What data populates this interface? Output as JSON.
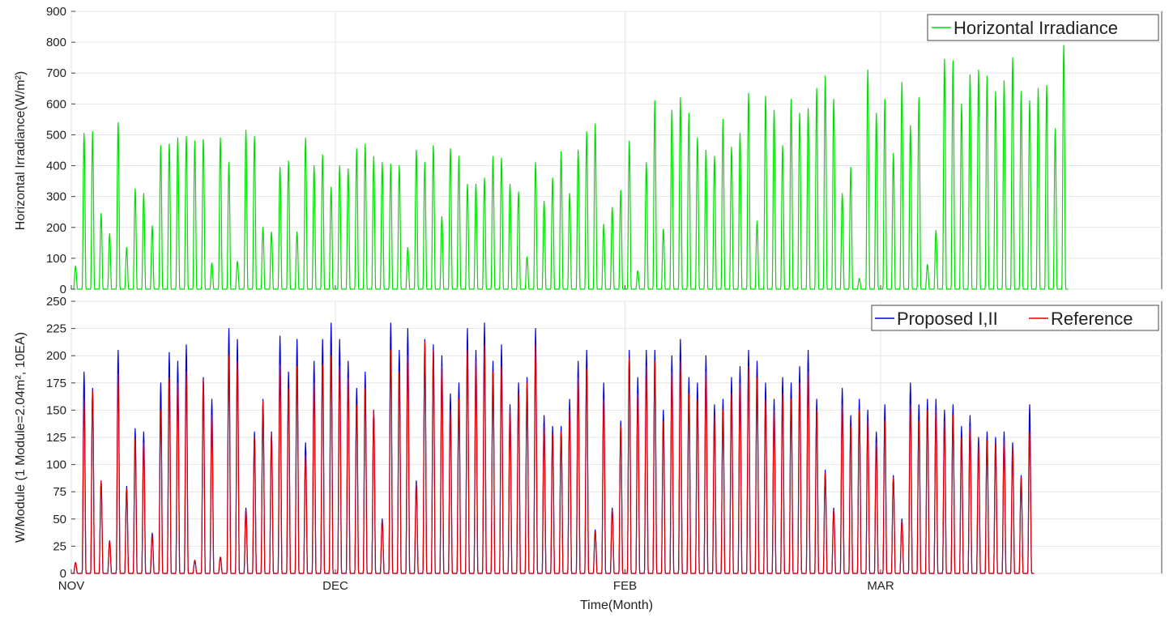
{
  "chart_data": [
    {
      "type": "line",
      "ylabel": "Horizontal Irradiance(W/m²)",
      "ylim": [
        0,
        900
      ],
      "yticks": [
        0,
        100,
        200,
        300,
        400,
        500,
        600,
        700,
        800,
        900
      ],
      "grid": true,
      "legend_position": "top-right",
      "x_unit": "day",
      "xlim": [
        0,
        128
      ],
      "series": [
        {
          "name": "Horizontal Irradiance",
          "color": "#00dd00",
          "daily_peaks": [
            75,
            505,
            510,
            245,
            180,
            540,
            135,
            325,
            310,
            205,
            465,
            470,
            490,
            495,
            480,
            485,
            85,
            490,
            410,
            90,
            515,
            495,
            200,
            185,
            395,
            415,
            185,
            490,
            400,
            435,
            330,
            400,
            390,
            455,
            470,
            430,
            410,
            405,
            400,
            135,
            450,
            410,
            465,
            235,
            455,
            430,
            340,
            340,
            360,
            430,
            425,
            340,
            315,
            105,
            410,
            285,
            360,
            445,
            310,
            450,
            510,
            535,
            210,
            265,
            320,
            480,
            60,
            410,
            610,
            195,
            580,
            620,
            570,
            490,
            450,
            430,
            550,
            460,
            505,
            635,
            220,
            625,
            580,
            465,
            615,
            570,
            585,
            650,
            690,
            615,
            310,
            395,
            35,
            710,
            570,
            615,
            440,
            670,
            530,
            620,
            80,
            190,
            745,
            740,
            600,
            695,
            710,
            690,
            640,
            675,
            750,
            640,
            610,
            650,
            660,
            520,
            790
          ]
        }
      ]
    },
    {
      "type": "line",
      "xlabel": "Time(Month)",
      "ylabel": "W/Module (1 Module=2.04m², 10EA)",
      "ylim": [
        0,
        250
      ],
      "yticks": [
        0,
        25,
        50,
        75,
        100,
        125,
        150,
        175,
        200,
        225,
        250
      ],
      "x_unit": "day",
      "xlim": [
        0,
        128
      ],
      "xticks": [
        {
          "label": "NOV",
          "x": 0
        },
        {
          "label": "DEC",
          "x": 31
        },
        {
          "label": "FEB",
          "x": 65
        },
        {
          "label": "MAR",
          "x": 95
        }
      ],
      "grid": true,
      "legend_position": "top-right",
      "series": [
        {
          "name": "Proposed I,II",
          "color": "#0000dd",
          "daily_peaks": [
            10,
            185,
            170,
            85,
            30,
            205,
            80,
            133,
            130,
            37,
            175,
            203,
            195,
            210,
            12,
            180,
            160,
            15,
            225,
            215,
            60,
            130,
            160,
            130,
            218,
            185,
            215,
            120,
            195,
            215,
            230,
            215,
            195,
            170,
            185,
            150,
            50,
            230,
            205,
            225,
            85,
            215,
            210,
            200,
            165,
            175,
            225,
            205,
            230,
            195,
            210,
            155,
            175,
            180,
            225,
            145,
            135,
            135,
            160,
            195,
            205,
            40,
            175,
            60,
            140,
            205,
            180,
            205,
            205,
            150,
            200,
            215,
            180,
            175,
            200,
            155,
            160,
            180,
            190,
            205,
            195,
            175,
            160,
            180,
            175,
            190,
            205,
            160,
            95,
            60,
            170,
            145,
            160,
            150,
            130,
            155,
            90,
            50,
            175,
            155,
            160,
            160,
            150,
            155,
            135,
            145,
            125,
            130,
            125,
            130,
            120,
            90,
            155
          ]
        },
        {
          "name": "Reference",
          "color": "#dd0000",
          "daily_peaks": [
            10,
            160,
            168,
            85,
            30,
            183,
            78,
            124,
            120,
            35,
            150,
            180,
            175,
            185,
            12,
            178,
            145,
            15,
            200,
            195,
            58,
            125,
            158,
            128,
            192,
            170,
            190,
            108,
            175,
            192,
            200,
            190,
            180,
            155,
            170,
            150,
            48,
            205,
            185,
            200,
            82,
            213,
            205,
            190,
            150,
            160,
            205,
            195,
            210,
            185,
            190,
            150,
            165,
            175,
            210,
            135,
            128,
            130,
            150,
            180,
            188,
            38,
            160,
            58,
            135,
            198,
            165,
            190,
            195,
            140,
            185,
            195,
            165,
            160,
            185,
            145,
            150,
            165,
            175,
            190,
            180,
            160,
            150,
            165,
            160,
            175,
            185,
            150,
            92,
            58,
            155,
            135,
            150,
            140,
            120,
            140,
            88,
            48,
            155,
            140,
            150,
            150,
            140,
            145,
            125,
            135,
            118,
            122,
            120,
            122,
            115,
            88,
            130
          ]
        }
      ]
    }
  ]
}
